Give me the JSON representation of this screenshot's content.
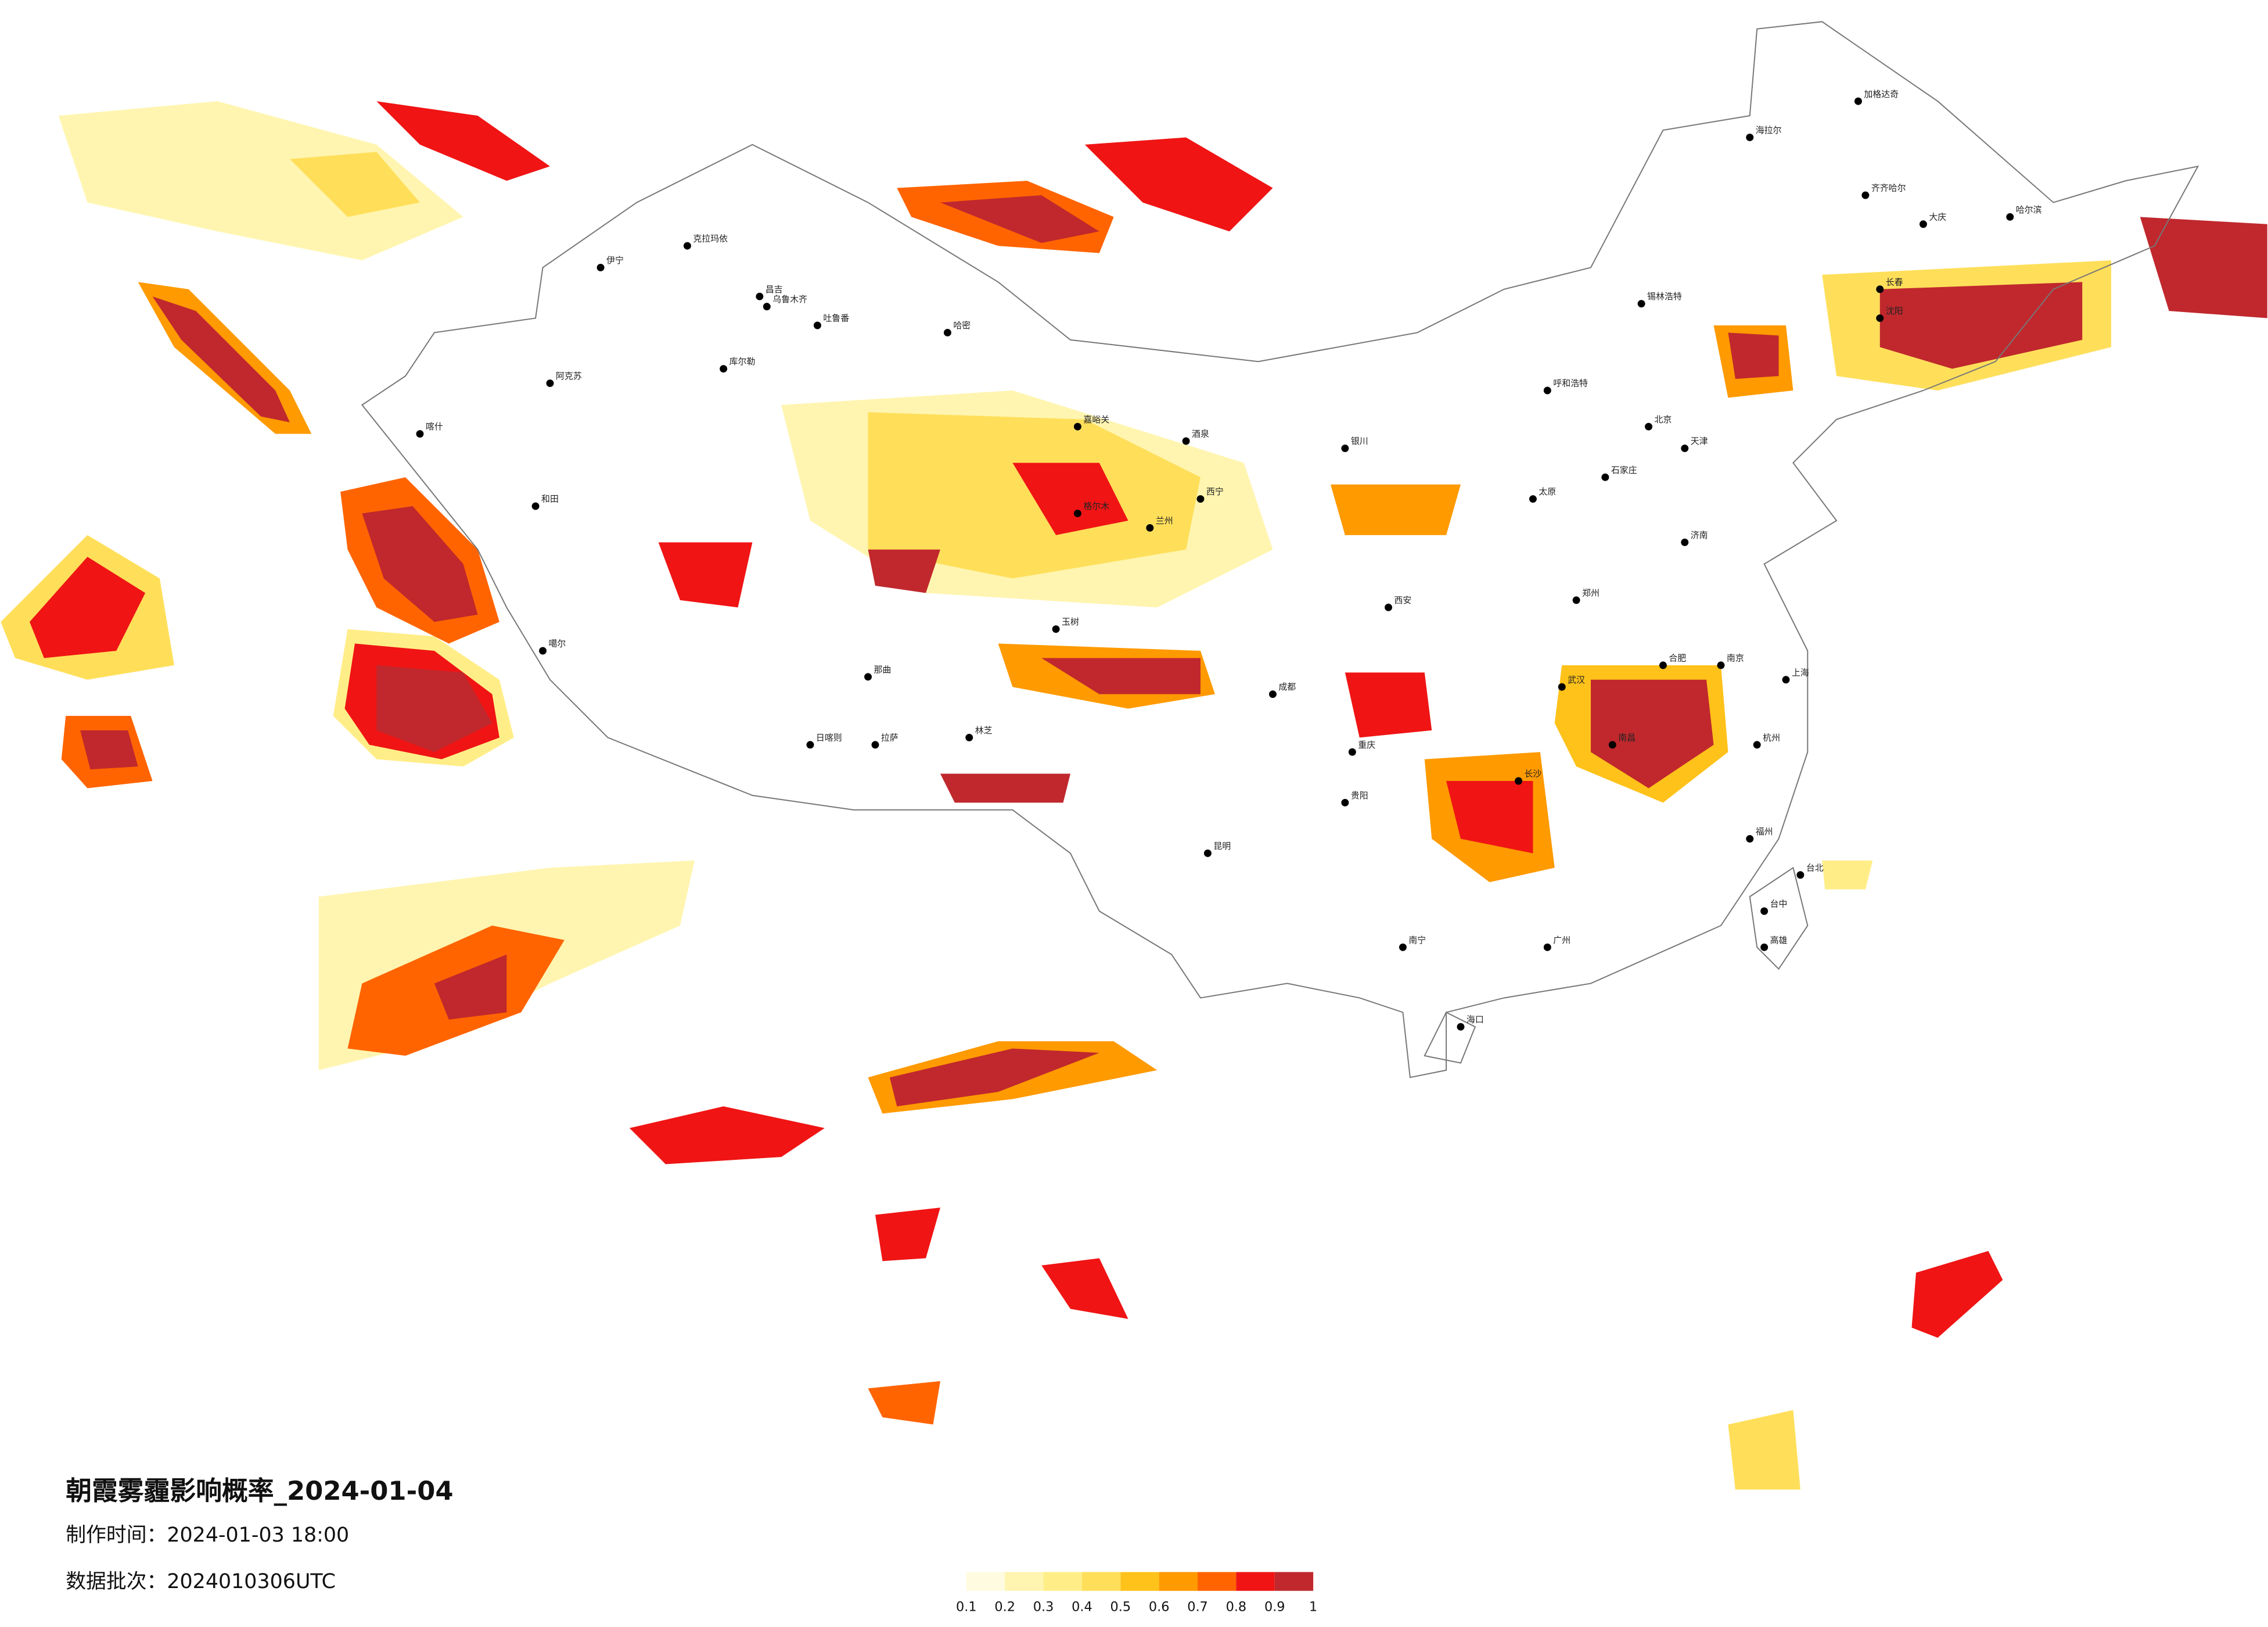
{
  "header": {
    "title": "朝霞雾霾影响概率_2024-01-04",
    "made_time": "制作时间：2024-01-03 18:00",
    "batch": "数据批次：2024010306UTC"
  },
  "legend": {
    "ticks": [
      "0.1",
      "0.2",
      "0.3",
      "0.4",
      "0.5",
      "0.6",
      "0.7",
      "0.8",
      "0.9",
      "1"
    ],
    "colors": [
      "#fffbe0",
      "#fff5b0",
      "#ffee88",
      "#ffdf5a",
      "#ffc21a",
      "#ff9a00",
      "#ff6400",
      "#f01414",
      "#c0282d"
    ]
  },
  "cities": [
    "伊宁",
    "克拉玛依",
    "昌吉",
    "乌鲁木齐",
    "吐鲁番",
    "哈密",
    "库尔勒",
    "阿克苏",
    "喀什",
    "和田",
    "噶尔",
    "日喀则",
    "拉萨",
    "林芝",
    "那曲",
    "玉树",
    "格尔木",
    "嘉峪关",
    "酒泉",
    "西宁",
    "兰州",
    "银川",
    "呼和浩特",
    "北京",
    "天津",
    "石家庄",
    "太原",
    "济南",
    "郑州",
    "西安",
    "成都",
    "重庆",
    "武汉",
    "长沙",
    "南昌",
    "合肥",
    "南京",
    "上海",
    "杭州",
    "福州",
    "广州",
    "南宁",
    "海口",
    "昆明",
    "贵阳",
    "沈阳",
    "长春",
    "哈尔滨",
    "海拉尔",
    "加格达奇",
    "齐齐哈尔",
    "锡林浩特",
    "大庆",
    "台北",
    "台中",
    "高雄"
  ]
}
